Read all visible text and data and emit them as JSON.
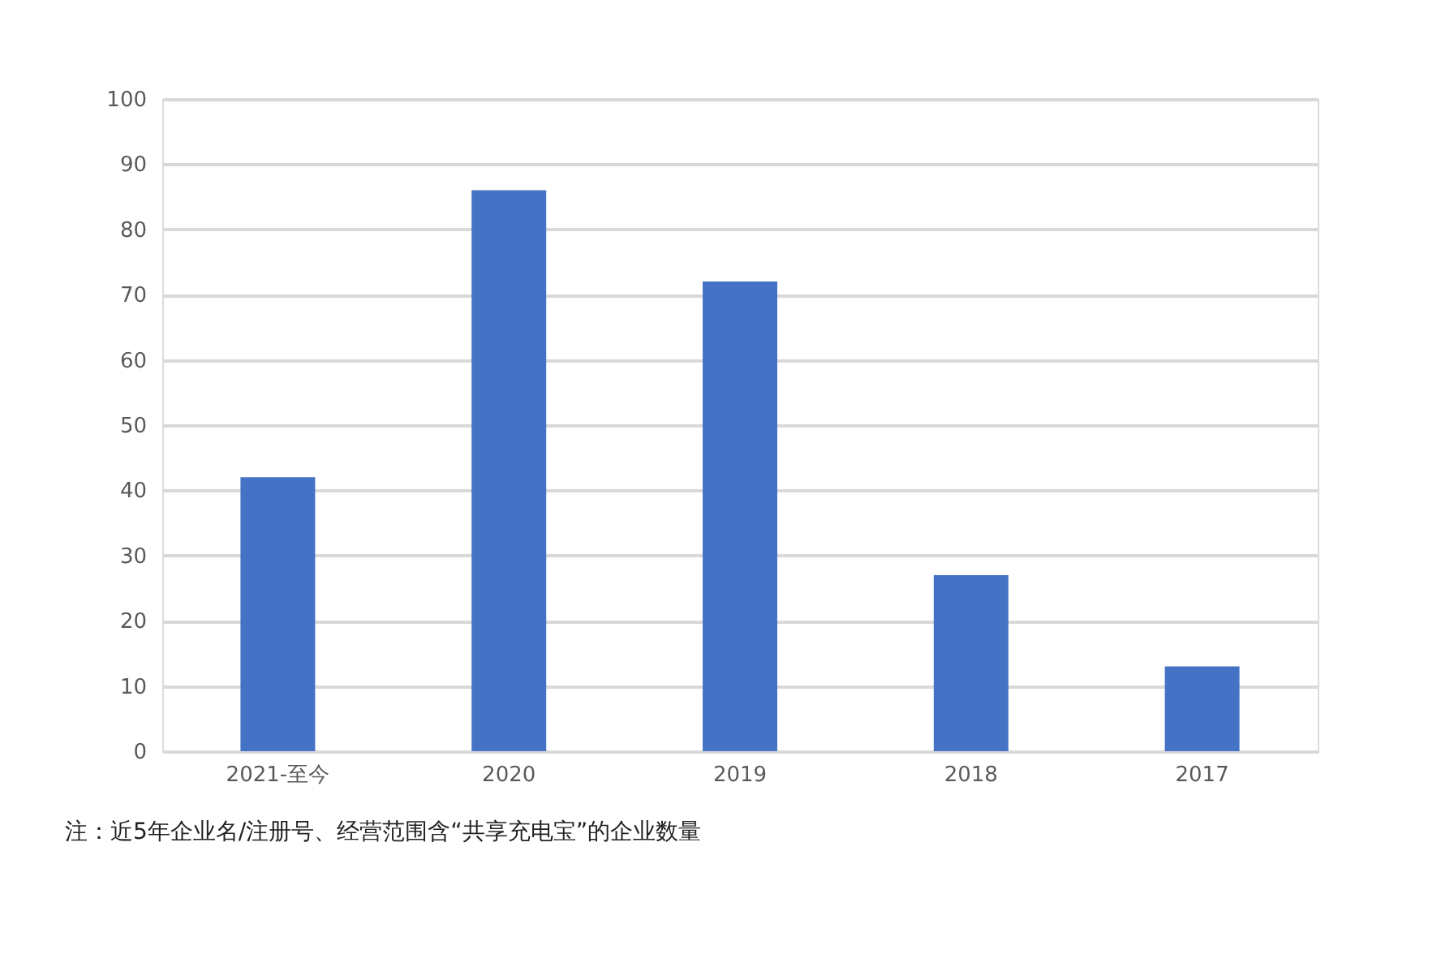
{
  "chart_data": {
    "type": "bar",
    "categories": [
      "2021-至今",
      "2020",
      "2019",
      "2018",
      "2017"
    ],
    "values": [
      42,
      86,
      72,
      27,
      13
    ],
    "color": "#4472c4",
    "ylim": [
      0,
      100
    ],
    "yticks": [
      0,
      10,
      20,
      30,
      40,
      50,
      60,
      70,
      80,
      90,
      100
    ],
    "grid": "y",
    "annotations": [
      "注：近5年企业名/注册号、经营范围含“共享充电宝”的企业数量"
    ]
  }
}
